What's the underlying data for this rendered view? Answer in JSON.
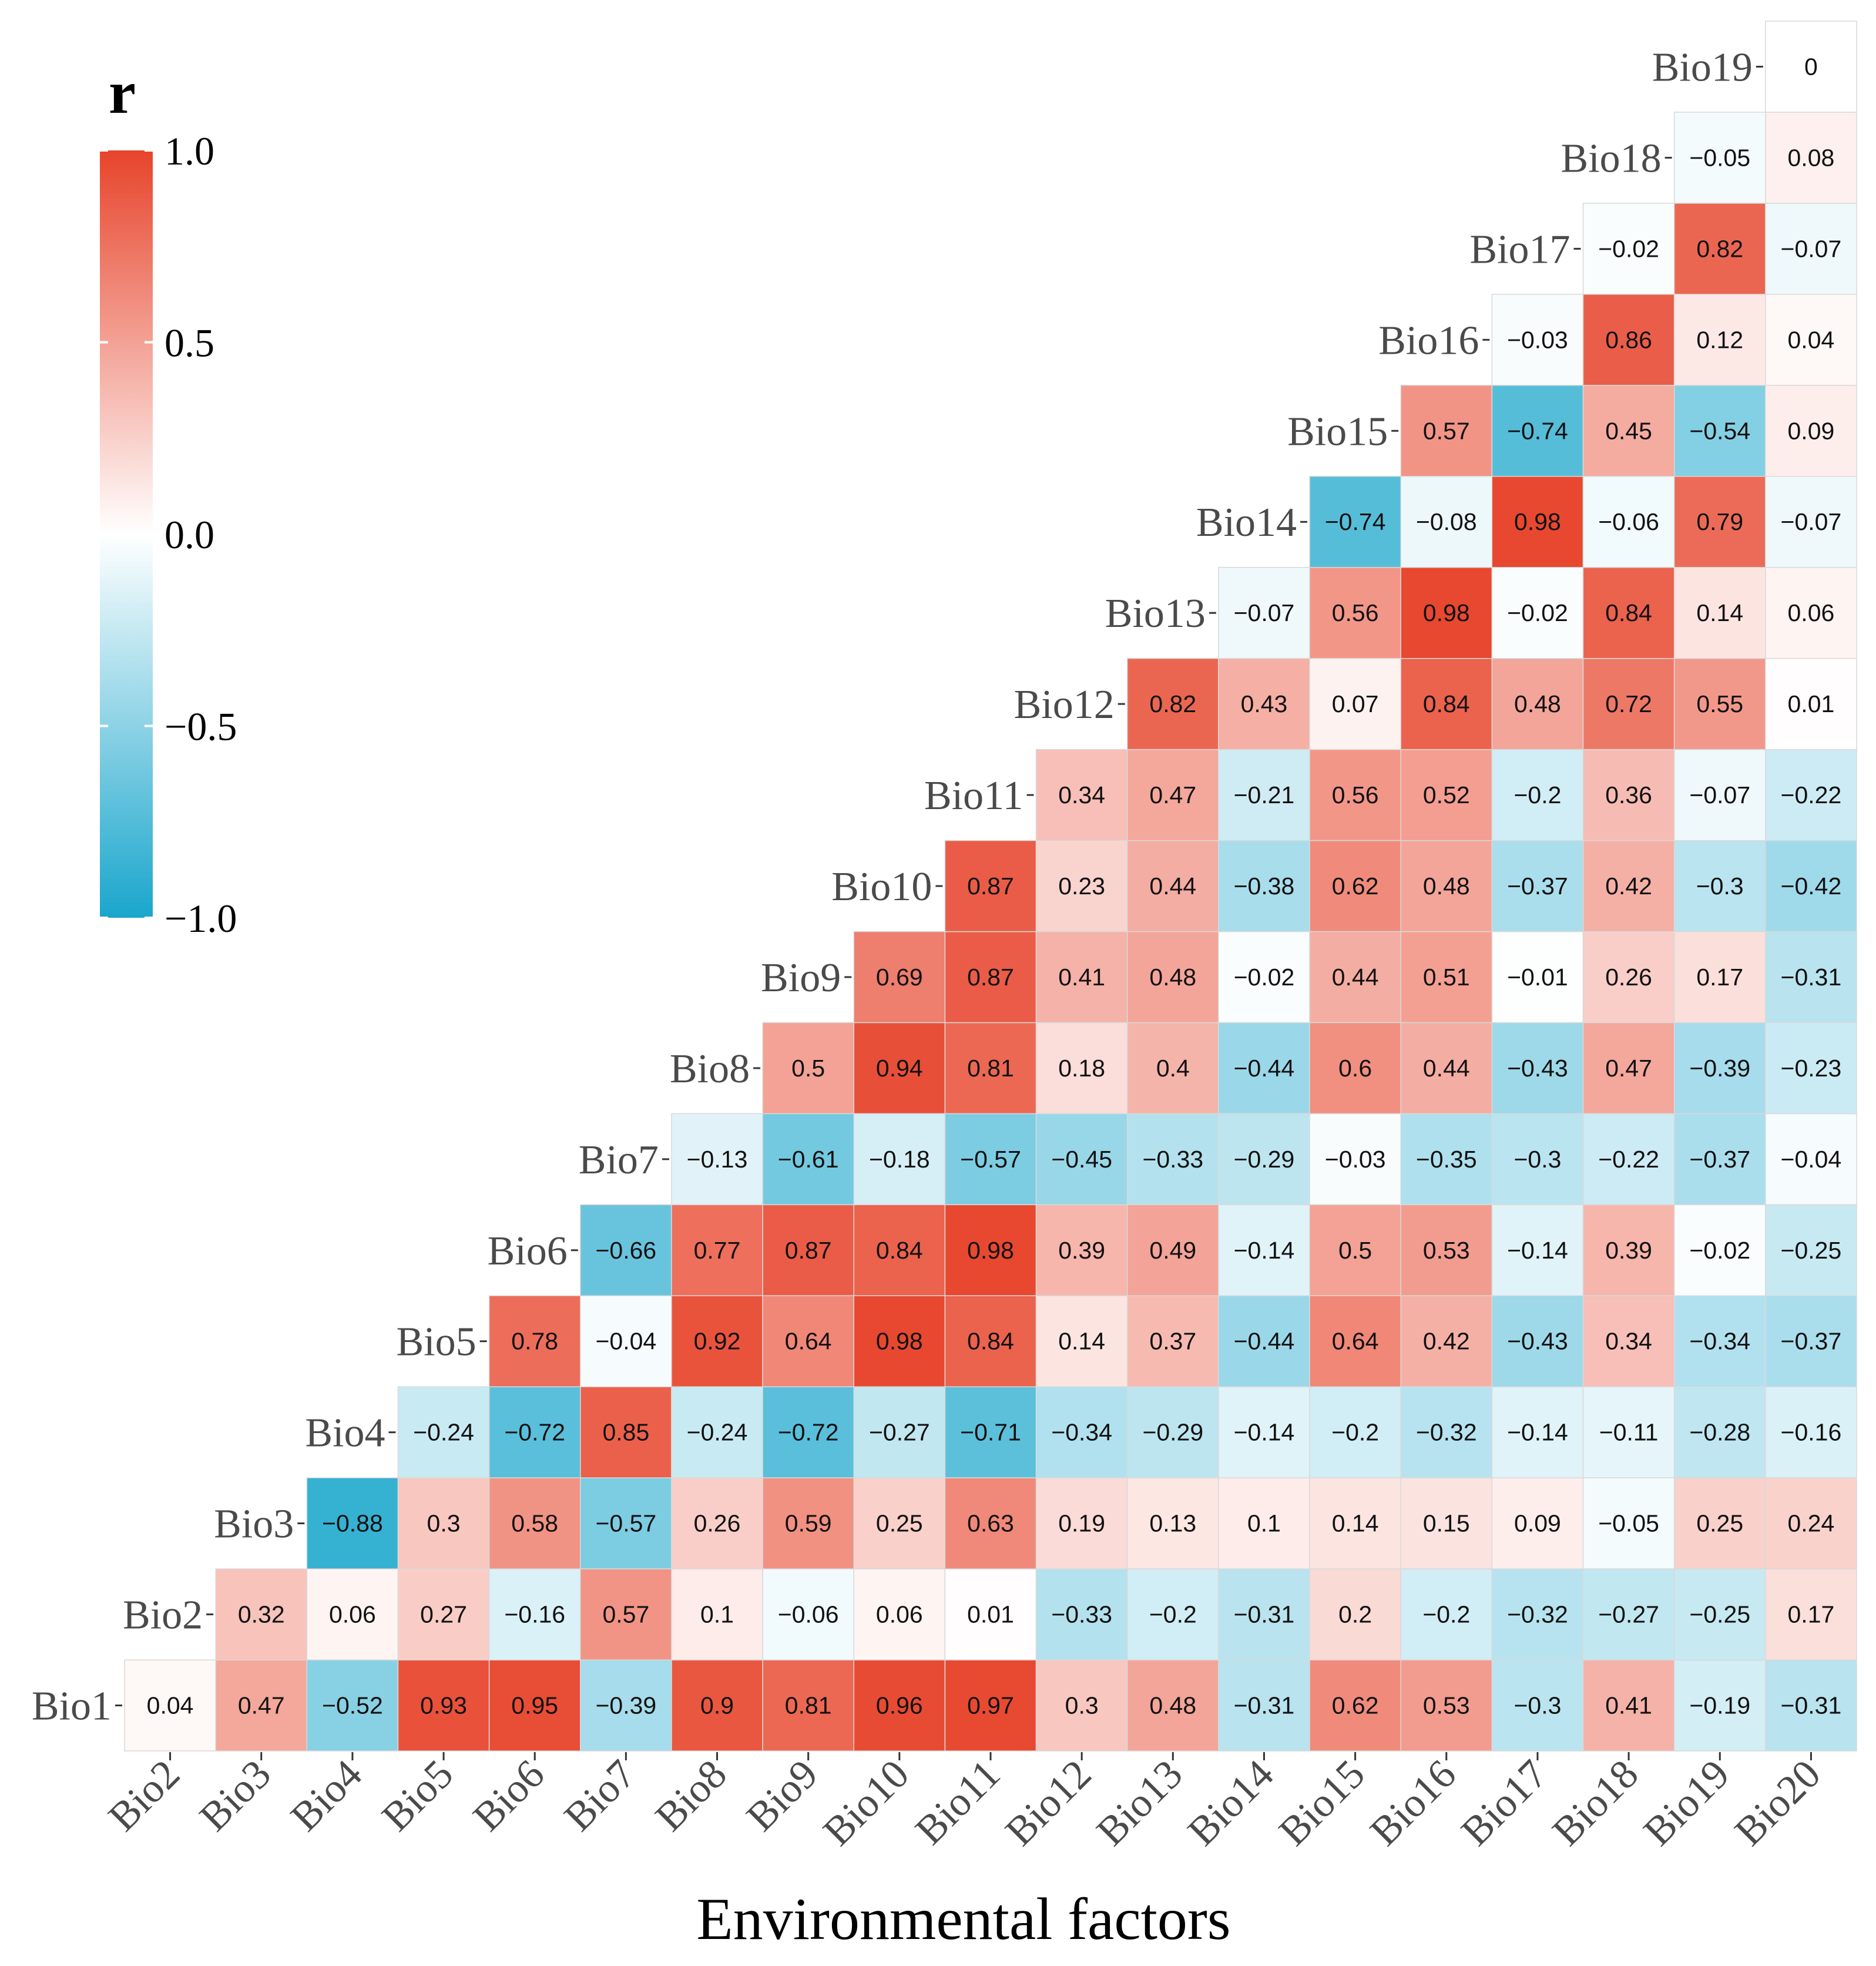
{
  "chart_data": {
    "type": "heatmap",
    "title": "",
    "xlabel": "Environmental factors",
    "ylabel": "",
    "x_labels": [
      "Bio2",
      "Bio3",
      "Bio4",
      "Bio5",
      "Bio6",
      "Bio7",
      "Bio8",
      "Bio9",
      "Bio10",
      "Bio11",
      "Bio12",
      "Bio13",
      "Bio14",
      "Bio15",
      "Bio16",
      "Bio17",
      "Bio18",
      "Bio19",
      "Bio20"
    ],
    "y_labels": [
      "Bio1",
      "Bio2",
      "Bio3",
      "Bio4",
      "Bio5",
      "Bio6",
      "Bio7",
      "Bio8",
      "Bio9",
      "Bio10",
      "Bio11",
      "Bio12",
      "Bio13",
      "Bio14",
      "Bio15",
      "Bio16",
      "Bio17",
      "Bio18",
      "Bio19"
    ],
    "rows": [
      [
        "0.04",
        "0.47",
        "−0.52",
        "0.93",
        "0.95",
        "−0.39",
        "0.9",
        "0.81",
        "0.96",
        "0.97",
        "0.3",
        "0.48",
        "−0.31",
        "0.62",
        "0.53",
        "−0.3",
        "0.41",
        "−0.19",
        "−0.31"
      ],
      [
        "0.32",
        "0.06",
        "0.27",
        "−0.16",
        "0.57",
        "0.1",
        "−0.06",
        "0.06",
        "0.01",
        "−0.33",
        "−0.2",
        "−0.31",
        "0.2",
        "−0.2",
        "−0.32",
        "−0.27",
        "−0.25",
        "0.17"
      ],
      [
        "−0.88",
        "0.3",
        "0.58",
        "−0.57",
        "0.26",
        "0.59",
        "0.25",
        "0.63",
        "0.19",
        "0.13",
        "0.1",
        "0.14",
        "0.15",
        "0.09",
        "−0.05",
        "0.25",
        "0.24"
      ],
      [
        "−0.24",
        "−0.72",
        "0.85",
        "−0.24",
        "−0.72",
        "−0.27",
        "−0.71",
        "−0.34",
        "−0.29",
        "−0.14",
        "−0.2",
        "−0.32",
        "−0.14",
        "−0.11",
        "−0.28",
        "−0.16"
      ],
      [
        "0.78",
        "−0.04",
        "0.92",
        "0.64",
        "0.98",
        "0.84",
        "0.14",
        "0.37",
        "−0.44",
        "0.64",
        "0.42",
        "−0.43",
        "0.34",
        "−0.34",
        "−0.37"
      ],
      [
        "−0.66",
        "0.77",
        "0.87",
        "0.84",
        "0.98",
        "0.39",
        "0.49",
        "−0.14",
        "0.5",
        "0.53",
        "−0.14",
        "0.39",
        "−0.02",
        "−0.25"
      ],
      [
        "−0.13",
        "−0.61",
        "−0.18",
        "−0.57",
        "−0.45",
        "−0.33",
        "−0.29",
        "−0.03",
        "−0.35",
        "−0.3",
        "−0.22",
        "−0.37",
        "−0.04"
      ],
      [
        "0.5",
        "0.94",
        "0.81",
        "0.18",
        "0.4",
        "−0.44",
        "0.6",
        "0.44",
        "−0.43",
        "0.47",
        "−0.39",
        "−0.23"
      ],
      [
        "0.69",
        "0.87",
        "0.41",
        "0.48",
        "−0.02",
        "0.44",
        "0.51",
        "−0.01",
        "0.26",
        "0.17",
        "−0.31"
      ],
      [
        "0.87",
        "0.23",
        "0.44",
        "−0.38",
        "0.62",
        "0.48",
        "−0.37",
        "0.42",
        "−0.3",
        "−0.42"
      ],
      [
        "0.34",
        "0.47",
        "−0.21",
        "0.56",
        "0.52",
        "−0.2",
        "0.36",
        "−0.07",
        "−0.22"
      ],
      [
        "0.82",
        "0.43",
        "0.07",
        "0.84",
        "0.48",
        "0.72",
        "0.55",
        "0.01"
      ],
      [
        "−0.07",
        "0.56",
        "0.98",
        "−0.02",
        "0.84",
        "0.14",
        "0.06"
      ],
      [
        "−0.74",
        "−0.08",
        "0.98",
        "−0.06",
        "0.79",
        "−0.07"
      ],
      [
        "0.57",
        "−0.74",
        "0.45",
        "−0.54",
        "0.09"
      ],
      [
        "−0.03",
        "0.86",
        "0.12",
        "0.04"
      ],
      [
        "−0.02",
        "0.82",
        "−0.07"
      ],
      [
        "−0.05",
        "0.08"
      ],
      [
        "0"
      ]
    ],
    "color_scale": {
      "title": "r",
      "min": -1.0,
      "max": 1.0,
      "ticks": [
        "1.0",
        "0.5",
        "0.0",
        "−0.5",
        "−1.0"
      ],
      "colors": {
        "low": "#1aa6cc",
        "mid": "#ffffff",
        "high": "#e7442b"
      }
    }
  }
}
